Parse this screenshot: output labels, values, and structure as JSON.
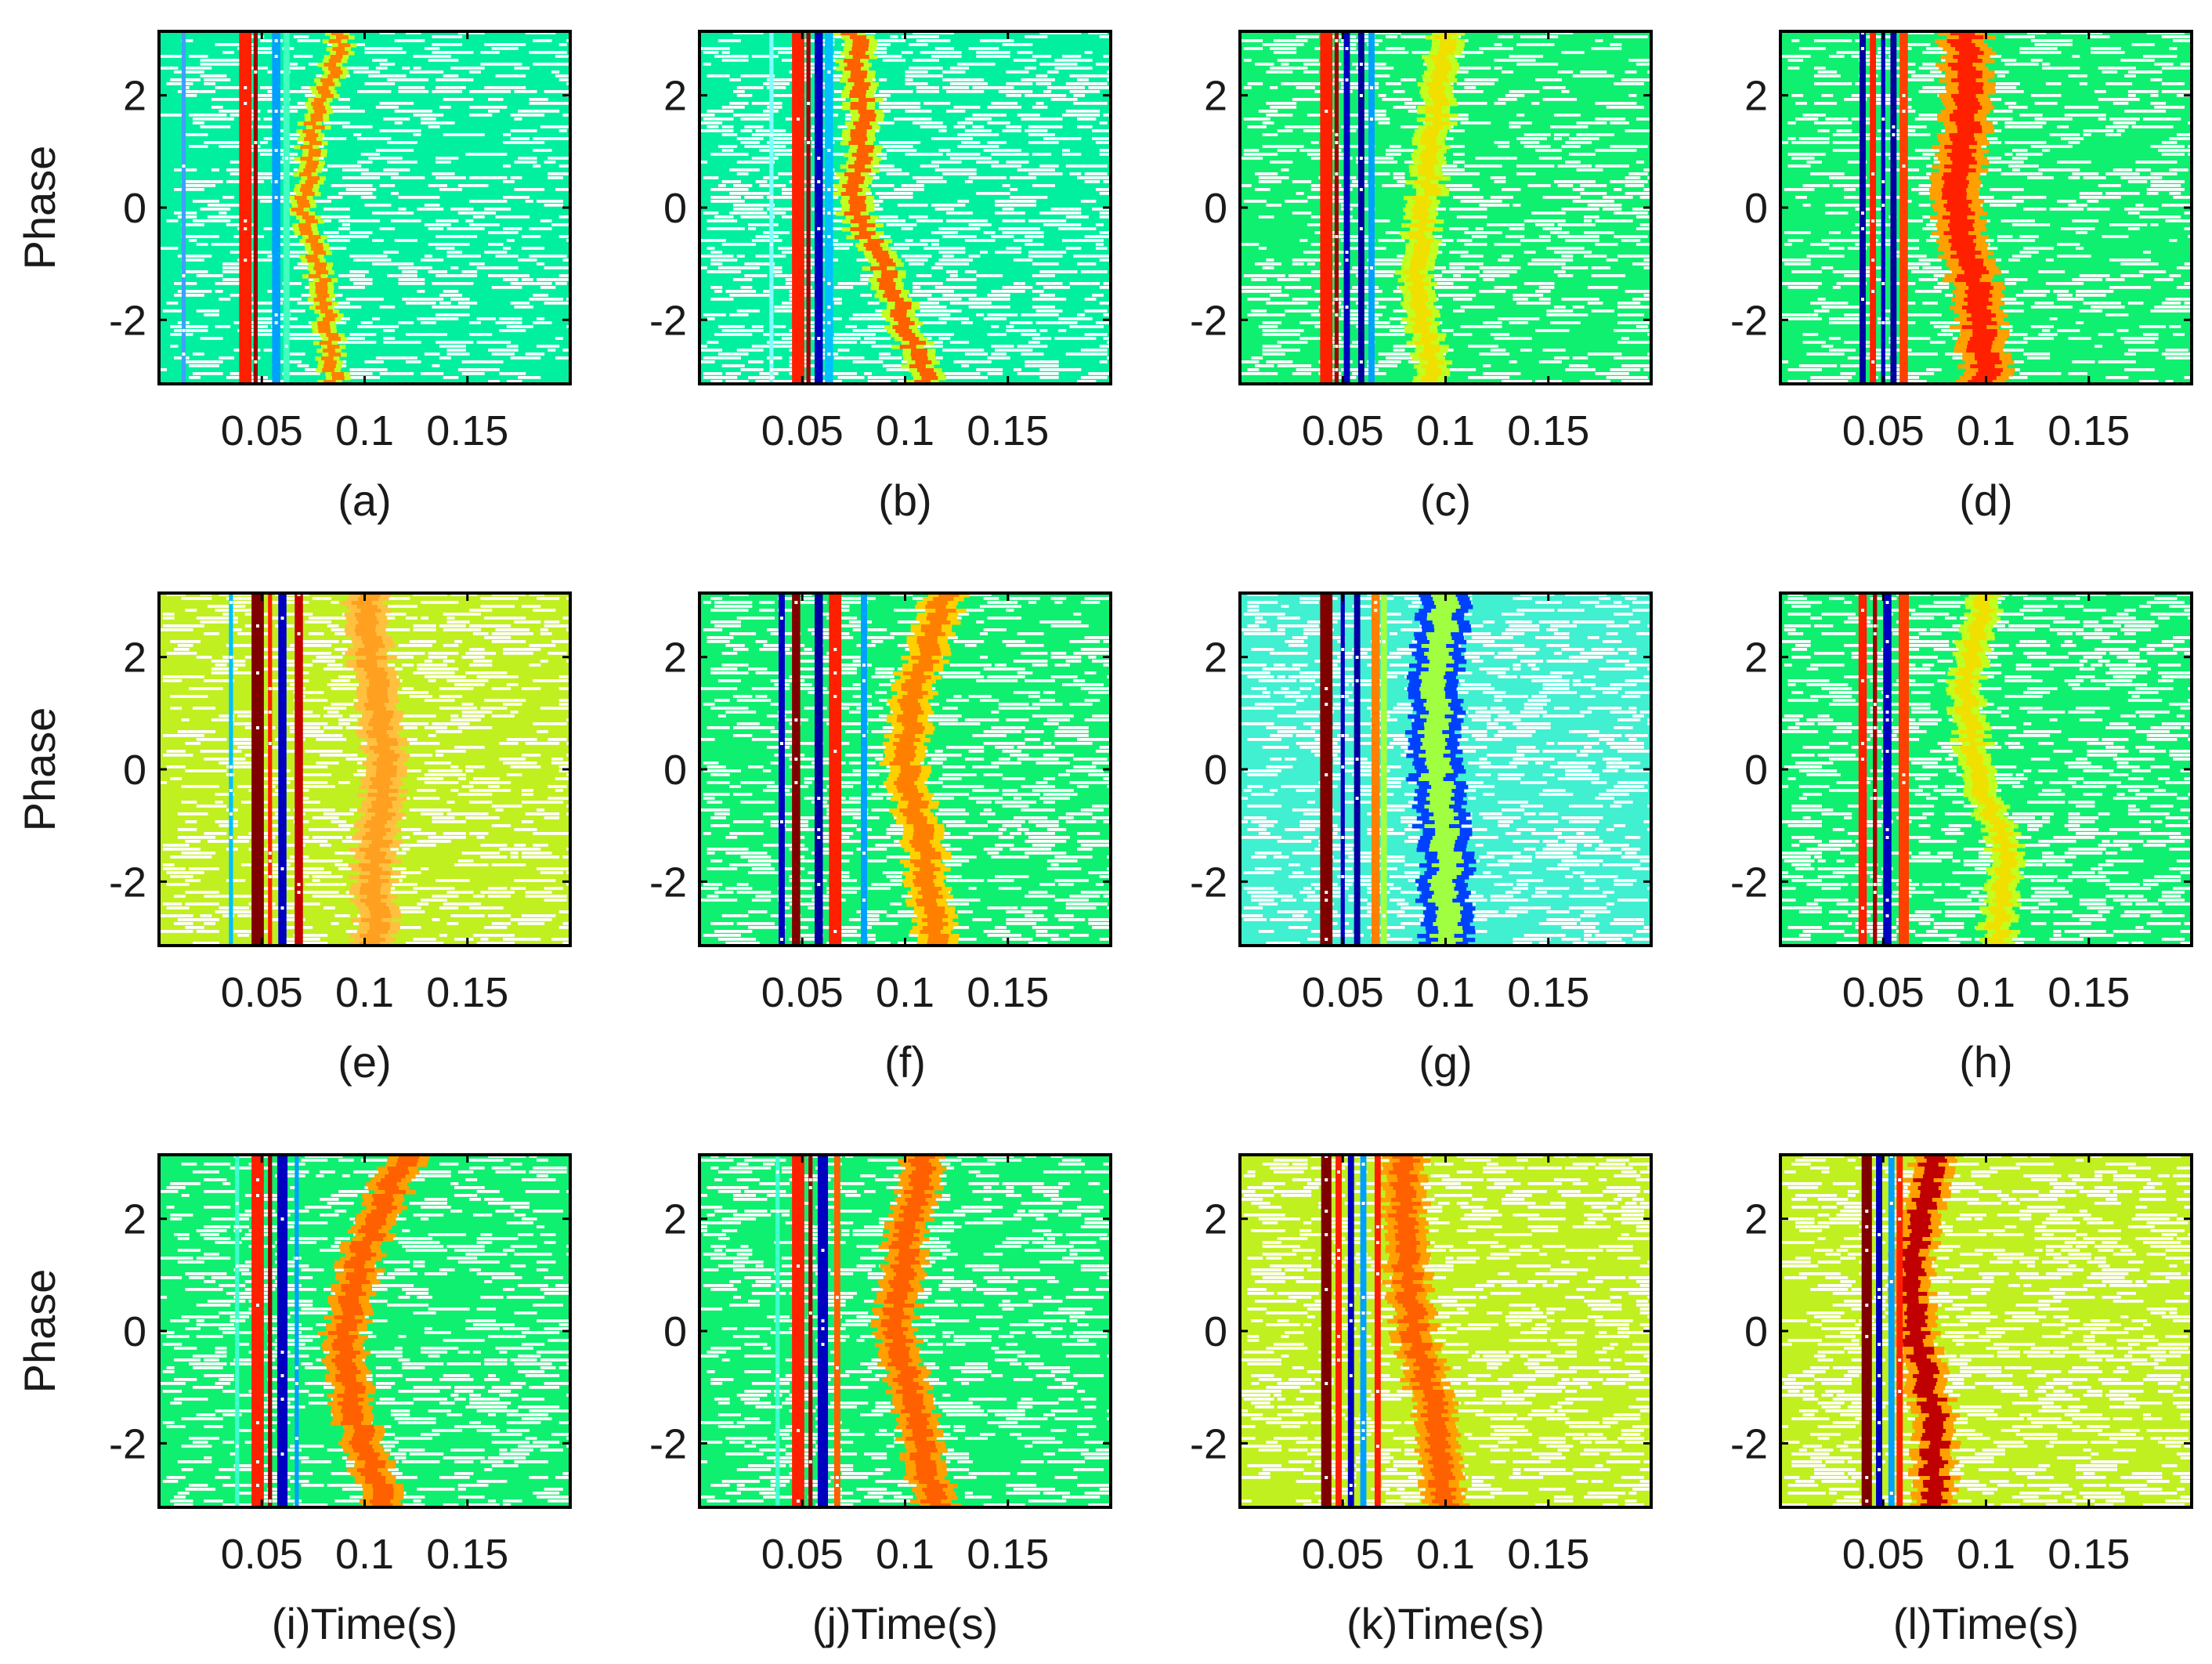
{
  "chart_data": {
    "type": "heatmap",
    "ylim": [
      -3.14,
      3.14
    ],
    "xlim": [
      0,
      0.2
    ],
    "yticks": [
      -2,
      0,
      2
    ],
    "ytick_labels": [
      "-2",
      "0",
      "2"
    ],
    "xticks": [
      0.05,
      0.1,
      0.15
    ],
    "xtick_labels": [
      "0.05",
      "0.1",
      "0.15"
    ],
    "ylabel": "Phase",
    "grid": false,
    "legend": "none",
    "panels": [
      {
        "id": "a",
        "caption": "(a)",
        "bg": "#00f0a0",
        "holes": 0.2,
        "bands": [
          {
            "x": 0.012,
            "w": 0.002,
            "c": "#40a0ff"
          },
          {
            "x": 0.042,
            "w": 0.006,
            "c": "#ff2000"
          },
          {
            "x": 0.047,
            "w": 0.002,
            "c": "#a00000"
          },
          {
            "x": 0.057,
            "w": 0.004,
            "c": "#00a0ff"
          },
          {
            "x": 0.062,
            "w": 0.003,
            "c": "#40ffc0"
          }
        ],
        "ridge": {
          "p": [
            [
              -3.14,
              0.085
            ],
            [
              -1.5,
              0.08
            ],
            [
              0,
              0.07
            ],
            [
              1.5,
              0.076
            ],
            [
              3.14,
              0.09
            ]
          ],
          "w": 0.006,
          "c": "#ff8000",
          "c2": "#c0ff20"
        }
      },
      {
        "id": "b",
        "caption": "(b)",
        "bg": "#00f0a0",
        "holes": 0.3,
        "bands": [
          {
            "x": 0.035,
            "w": 0.002,
            "c": "#80ffff"
          },
          {
            "x": 0.048,
            "w": 0.006,
            "c": "#ff2000"
          },
          {
            "x": 0.053,
            "w": 0.002,
            "c": "#a00000"
          },
          {
            "x": 0.058,
            "w": 0.004,
            "c": "#0000c0"
          },
          {
            "x": 0.063,
            "w": 0.004,
            "c": "#00c0ff"
          }
        ],
        "ridge": {
          "p": [
            [
              -3.14,
              0.11
            ],
            [
              -1.5,
              0.095
            ],
            [
              0,
              0.075
            ],
            [
              1.5,
              0.08
            ],
            [
              3.14,
              0.075
            ]
          ],
          "w": 0.008,
          "c": "#ff6000",
          "c2": "#c0ff20"
        }
      },
      {
        "id": "c",
        "caption": "(c)",
        "bg": "#10f070",
        "holes": 0.22,
        "bands": [
          {
            "x": 0.042,
            "w": 0.006,
            "c": "#ff2000"
          },
          {
            "x": 0.047,
            "w": 0.002,
            "c": "#a00000"
          },
          {
            "x": 0.052,
            "w": 0.003,
            "c": "#0000c0"
          },
          {
            "x": 0.059,
            "w": 0.003,
            "c": "#0000a0"
          },
          {
            "x": 0.064,
            "w": 0.003,
            "c": "#00a0ff"
          }
        ],
        "ridge": {
          "p": [
            [
              -3.14,
              0.095
            ],
            [
              -1.5,
              0.085
            ],
            [
              0,
              0.09
            ],
            [
              1.5,
              0.095
            ],
            [
              3.14,
              0.1
            ]
          ],
          "w": 0.008,
          "c": "#f0e000",
          "c2": "#c0ff20"
        }
      },
      {
        "id": "d",
        "caption": "(d)",
        "bg": "#10f070",
        "holes": 0.2,
        "bands": [
          {
            "x": 0.04,
            "w": 0.003,
            "c": "#0000a0"
          },
          {
            "x": 0.045,
            "w": 0.003,
            "c": "#ff2000"
          },
          {
            "x": 0.05,
            "w": 0.002,
            "c": "#0000c0"
          },
          {
            "x": 0.055,
            "w": 0.003,
            "c": "#0000a0"
          },
          {
            "x": 0.06,
            "w": 0.004,
            "c": "#ff4000"
          }
        ],
        "ridge": {
          "p": [
            [
              -3.14,
              0.1
            ],
            [
              -1.5,
              0.095
            ],
            [
              0,
              0.085
            ],
            [
              1.5,
              0.09
            ],
            [
              3.14,
              0.09
            ]
          ],
          "w": 0.012,
          "c": "#ff2000",
          "c2": "#ffa000"
        }
      },
      {
        "id": "e",
        "caption": "(e)",
        "bg": "#c0f020",
        "holes": 0.22,
        "bands": [
          {
            "x": 0.035,
            "w": 0.002,
            "c": "#00c0ff"
          },
          {
            "x": 0.048,
            "w": 0.006,
            "c": "#800000"
          },
          {
            "x": 0.054,
            "w": 0.002,
            "c": "#ff2000"
          },
          {
            "x": 0.06,
            "w": 0.004,
            "c": "#0000c0"
          },
          {
            "x": 0.068,
            "w": 0.004,
            "c": "#c00000"
          }
        ],
        "ridge": {
          "p": [
            [
              -3.14,
              0.105
            ],
            [
              -1.5,
              0.105
            ],
            [
              0,
              0.11
            ],
            [
              1.5,
              0.105
            ],
            [
              3.14,
              0.1
            ]
          ],
          "w": 0.01,
          "c": "#ffa020",
          "c2": "#ffc040"
        }
      },
      {
        "id": "f",
        "caption": "(f)",
        "bg": "#10f070",
        "holes": 0.25,
        "bands": [
          {
            "x": 0.04,
            "w": 0.003,
            "c": "#0000c0"
          },
          {
            "x": 0.047,
            "w": 0.004,
            "c": "#800000"
          },
          {
            "x": 0.058,
            "w": 0.004,
            "c": "#0000a0"
          },
          {
            "x": 0.066,
            "w": 0.006,
            "c": "#ff2000"
          },
          {
            "x": 0.08,
            "w": 0.003,
            "c": "#00a0ff"
          }
        ],
        "ridge": {
          "p": [
            [
              -3.14,
              0.115
            ],
            [
              -1.5,
              0.11
            ],
            [
              0,
              0.1
            ],
            [
              1.5,
              0.105
            ],
            [
              3.14,
              0.12
            ]
          ],
          "w": 0.01,
          "c": "#ff8000",
          "c2": "#ffd000"
        }
      },
      {
        "id": "g",
        "caption": "(g)",
        "bg": "#40f0d0",
        "holes": 0.28,
        "bands": [
          {
            "x": 0.042,
            "w": 0.006,
            "c": "#800000"
          },
          {
            "x": 0.05,
            "w": 0.002,
            "c": "#0000c0"
          },
          {
            "x": 0.057,
            "w": 0.003,
            "c": "#0000a0"
          },
          {
            "x": 0.066,
            "w": 0.004,
            "c": "#ff8000"
          },
          {
            "x": 0.07,
            "w": 0.003,
            "c": "#a0ff40"
          }
        ],
        "ridge": {
          "p": [
            [
              -3.14,
              0.1
            ],
            [
              -1.5,
              0.1
            ],
            [
              0,
              0.095
            ],
            [
              1.5,
              0.095
            ],
            [
              3.14,
              0.1
            ]
          ],
          "w": 0.012,
          "c": "#a0ff40",
          "c2": "#0040ff"
        }
      },
      {
        "id": "h",
        "caption": "(h)",
        "bg": "#10f070",
        "holes": 0.25,
        "bands": [
          {
            "x": 0.04,
            "w": 0.004,
            "c": "#ff2000"
          },
          {
            "x": 0.046,
            "w": 0.002,
            "c": "#a00000"
          },
          {
            "x": 0.052,
            "w": 0.004,
            "c": "#0000c0"
          },
          {
            "x": 0.06,
            "w": 0.005,
            "c": "#ff4000"
          }
        ],
        "ridge": {
          "p": [
            [
              -3.14,
              0.105
            ],
            [
              -1.5,
              0.11
            ],
            [
              0,
              0.095
            ],
            [
              1.5,
              0.09
            ],
            [
              3.14,
              0.1
            ]
          ],
          "w": 0.008,
          "c": "#f0e000",
          "c2": "#c0ff20"
        }
      },
      {
        "id": "i",
        "caption": "(i)Time(s)",
        "bg": "#10f070",
        "holes": 0.22,
        "bands": [
          {
            "x": 0.038,
            "w": 0.002,
            "c": "#40ffd0"
          },
          {
            "x": 0.048,
            "w": 0.006,
            "c": "#ff2000"
          },
          {
            "x": 0.054,
            "w": 0.002,
            "c": "#a00000"
          },
          {
            "x": 0.06,
            "w": 0.005,
            "c": "#0000c0"
          },
          {
            "x": 0.067,
            "w": 0.002,
            "c": "#00a0ff"
          }
        ],
        "ridge": {
          "p": [
            [
              -3.14,
              0.11
            ],
            [
              -1.5,
              0.095
            ],
            [
              0,
              0.09
            ],
            [
              1.5,
              0.1
            ],
            [
              3.14,
              0.12
            ]
          ],
          "w": 0.01,
          "c": "#ff6000",
          "c2": "#ffa000"
        }
      },
      {
        "id": "j",
        "caption": "(j)Time(s)",
        "bg": "#10f070",
        "holes": 0.22,
        "bands": [
          {
            "x": 0.038,
            "w": 0.002,
            "c": "#40ffd0"
          },
          {
            "x": 0.048,
            "w": 0.006,
            "c": "#ff2000"
          },
          {
            "x": 0.054,
            "w": 0.002,
            "c": "#a00000"
          },
          {
            "x": 0.06,
            "w": 0.005,
            "c": "#0000c0"
          },
          {
            "x": 0.067,
            "w": 0.003,
            "c": "#ff6000"
          }
        ],
        "ridge": {
          "p": [
            [
              -3.14,
              0.115
            ],
            [
              -1.5,
              0.105
            ],
            [
              0,
              0.095
            ],
            [
              1.5,
              0.1
            ],
            [
              3.14,
              0.11
            ]
          ],
          "w": 0.01,
          "c": "#ff6000",
          "c2": "#ffa000"
        }
      },
      {
        "id": "k",
        "caption": "(k)Time(s)",
        "bg": "#c0f020",
        "holes": 0.25,
        "bands": [
          {
            "x": 0.042,
            "w": 0.005,
            "c": "#800000"
          },
          {
            "x": 0.048,
            "w": 0.003,
            "c": "#ff2000"
          },
          {
            "x": 0.054,
            "w": 0.003,
            "c": "#0000c0"
          },
          {
            "x": 0.06,
            "w": 0.003,
            "c": "#00a0ff"
          },
          {
            "x": 0.067,
            "w": 0.003,
            "c": "#ff2000"
          }
        ],
        "ridge": {
          "p": [
            [
              -3.14,
              0.1
            ],
            [
              -1.5,
              0.095
            ],
            [
              0,
              0.085
            ],
            [
              1.5,
              0.08
            ],
            [
              3.14,
              0.08
            ]
          ],
          "w": 0.01,
          "c": "#ff6000",
          "c2": "#ffa000"
        }
      },
      {
        "id": "l",
        "caption": "(l)Time(s)",
        "bg": "#c0f020",
        "holes": 0.3,
        "bands": [
          {
            "x": 0.042,
            "w": 0.005,
            "c": "#800000"
          },
          {
            "x": 0.048,
            "w": 0.003,
            "c": "#0000c0"
          },
          {
            "x": 0.054,
            "w": 0.003,
            "c": "#00a0ff"
          },
          {
            "x": 0.058,
            "w": 0.003,
            "c": "#ff2000"
          }
        ],
        "ridge": {
          "p": [
            [
              -3.14,
              0.075
            ],
            [
              -1.5,
              0.075
            ],
            [
              0,
              0.065
            ],
            [
              1.5,
              0.065
            ],
            [
              3.14,
              0.075
            ]
          ],
          "w": 0.01,
          "c": "#c00000",
          "c2": "#ffa000"
        }
      }
    ]
  }
}
